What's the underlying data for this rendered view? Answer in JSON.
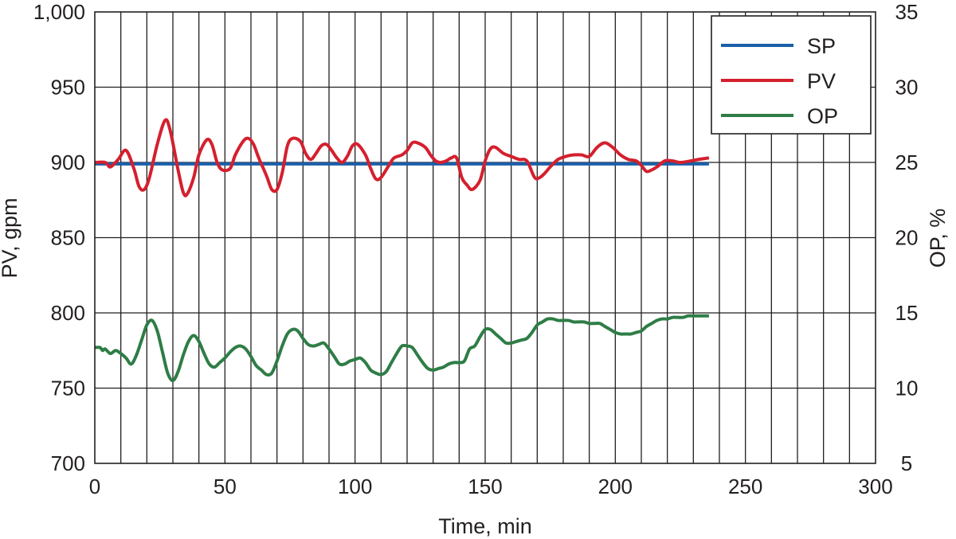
{
  "chart_data": {
    "type": "line",
    "xlabel": "Time, min",
    "ylabel": "PV, gpm",
    "y2label": "OP, %",
    "xlim": [
      0,
      300
    ],
    "ylim": [
      700,
      1000
    ],
    "y2lim": [
      5,
      35
    ],
    "x_ticks": [
      "0",
      "50",
      "100",
      "150",
      "200",
      "250",
      "300"
    ],
    "y_ticks": [
      "700",
      "750",
      "800",
      "850",
      "900",
      "950",
      "1,000"
    ],
    "y2_ticks": [
      "5",
      "10",
      "15",
      "20",
      "25",
      "30",
      "35"
    ],
    "grid": {
      "vertical_every": 10,
      "horizontal_every": 50
    },
    "legend_position": "top-right",
    "series": [
      {
        "name": "SP",
        "axis": "left",
        "color": "#1a5fa8",
        "x": [
          0,
          236
        ],
        "y": [
          899,
          899
        ]
      },
      {
        "name": "PV",
        "axis": "left",
        "color": "#d4202e",
        "x": [
          0,
          4,
          6,
          9,
          12,
          15,
          17,
          19,
          21,
          24,
          27,
          29,
          32,
          34,
          35.5,
          38,
          40,
          43,
          45,
          47,
          49,
          52,
          54,
          57,
          59,
          61,
          63,
          66,
          68,
          70,
          72,
          74,
          76,
          79,
          81,
          83,
          85,
          87,
          89,
          91,
          93,
          95,
          97,
          99,
          101,
          104,
          106,
          108,
          110,
          113,
          115,
          118,
          120,
          122,
          124,
          127,
          129,
          131,
          133,
          135,
          137,
          139,
          141,
          143,
          145,
          148,
          150,
          152,
          154,
          157,
          160,
          163,
          166,
          169,
          171,
          173,
          175,
          178,
          181,
          184,
          187,
          190,
          193,
          196,
          199,
          202,
          205,
          208,
          210,
          212,
          214,
          216,
          219,
          222,
          225,
          229,
          232,
          236
        ],
        "y": [
          900,
          900,
          897,
          902,
          908,
          896,
          884,
          882,
          890,
          912,
          928,
          921,
          895,
          880,
          879,
          890,
          905,
          915,
          912,
          900,
          895,
          896,
          905,
          914,
          916,
          912,
          903,
          891,
          882,
          882,
          893,
          911,
          916,
          914,
          906,
          902,
          906,
          911,
          912,
          908,
          903,
          900,
          904,
          911,
          912,
          905,
          896,
          889,
          890,
          898,
          903,
          905,
          908,
          913,
          913,
          910,
          905,
          901,
          900,
          901,
          903,
          903,
          890,
          885,
          882,
          888,
          901,
          909,
          910,
          906,
          904,
          902,
          901,
          890,
          890,
          893,
          897,
          902,
          904,
          905,
          905,
          904,
          910,
          913,
          910,
          905,
          902,
          901,
          898,
          894,
          895,
          897,
          901,
          901,
          900,
          901,
          902,
          903
        ]
      },
      {
        "name": "OP",
        "axis": "right",
        "color": "#2e7d46",
        "x": [
          0,
          2,
          3,
          4,
          6,
          8,
          10,
          12,
          14,
          16,
          18,
          20,
          22,
          24,
          26,
          28,
          30,
          32,
          34,
          36,
          38,
          40,
          42,
          44,
          46,
          48,
          50,
          52,
          54,
          56,
          58,
          60,
          62,
          64,
          66,
          68,
          70,
          72,
          74,
          76,
          78,
          80,
          82,
          84,
          86,
          88,
          90,
          92,
          94,
          96,
          98,
          100,
          102,
          104,
          106,
          108,
          110,
          112,
          114,
          116,
          118,
          120,
          122,
          124,
          126,
          128,
          130,
          132,
          134,
          136,
          138,
          140,
          142,
          144,
          146,
          148,
          150,
          152,
          154,
          156,
          158,
          160,
          162,
          164,
          166,
          168,
          170,
          172,
          174,
          176,
          178,
          180,
          182,
          184,
          186,
          188,
          190,
          192,
          194,
          196,
          198,
          200,
          202,
          204,
          206,
          208,
          210,
          212,
          214,
          216,
          218,
          220,
          222,
          224,
          226,
          228,
          230,
          232,
          234,
          236
        ],
        "y": [
          12.7,
          12.7,
          12.5,
          12.6,
          12.3,
          12.5,
          12.3,
          12.0,
          11.6,
          12.2,
          13.2,
          14.2,
          14.5,
          13.8,
          12.4,
          11.0,
          10.5,
          11.1,
          12.2,
          13.1,
          13.5,
          13.1,
          12.3,
          11.6,
          11.4,
          11.7,
          12.0,
          12.4,
          12.7,
          12.8,
          12.6,
          12.1,
          11.5,
          11.2,
          10.9,
          11.0,
          11.8,
          12.8,
          13.6,
          13.9,
          13.8,
          13.3,
          12.9,
          12.8,
          12.9,
          13.0,
          12.6,
          12.1,
          11.6,
          11.6,
          11.8,
          11.9,
          12.0,
          11.7,
          11.2,
          11.0,
          10.9,
          11.1,
          11.7,
          12.3,
          12.8,
          12.8,
          12.7,
          12.2,
          11.7,
          11.3,
          11.2,
          11.3,
          11.4,
          11.6,
          11.7,
          11.7,
          11.8,
          12.6,
          12.8,
          13.4,
          13.9,
          13.9,
          13.6,
          13.3,
          13.0,
          13.0,
          13.1,
          13.2,
          13.3,
          13.7,
          14.2,
          14.4,
          14.6,
          14.6,
          14.5,
          14.5,
          14.5,
          14.4,
          14.4,
          14.4,
          14.3,
          14.3,
          14.3,
          14.1,
          13.9,
          13.7,
          13.6,
          13.6,
          13.6,
          13.7,
          13.8,
          14.1,
          14.3,
          14.5,
          14.6,
          14.6,
          14.7,
          14.7,
          14.7,
          14.8,
          14.8,
          14.8,
          14.8,
          14.8
        ]
      }
    ]
  }
}
